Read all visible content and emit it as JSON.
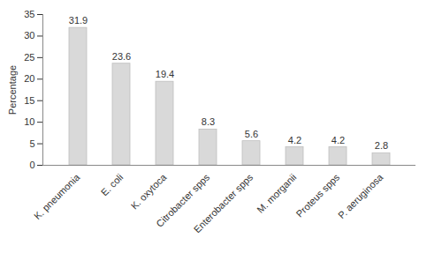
{
  "chart_data": {
    "type": "bar",
    "y_label": "Percentage",
    "categories": [
      "K. pneumonia",
      "E. coli",
      "K. oxytoca",
      "Citrobacter spps",
      "Enterobacter spps",
      "M. morganii",
      "Proteus spps",
      "P. aeruginosa"
    ],
    "values": [
      31.9,
      23.6,
      19.4,
      8.3,
      5.6,
      4.2,
      4.2,
      2.8
    ],
    "color": "#d9d9d9",
    "ylim": [
      0,
      35
    ],
    "yticks": [
      0,
      5,
      10,
      15,
      20,
      25,
      30,
      35
    ],
    "grid": false,
    "data_labels": true
  }
}
